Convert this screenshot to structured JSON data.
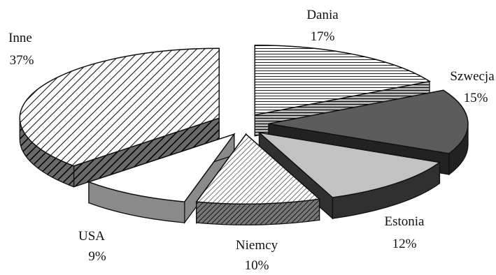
{
  "chart_data": {
    "type": "pie",
    "title": "",
    "categories": [
      "Dania",
      "Szwecja",
      "Estonia",
      "Niemcy",
      "USA",
      "Inne"
    ],
    "values": [
      17,
      15,
      12,
      10,
      9,
      37
    ],
    "value_labels": [
      "17%",
      "15%",
      "12%",
      "10%",
      "9%",
      "37%"
    ],
    "unit": "%",
    "exploded": true,
    "three_d": true,
    "legend": "none (labels beside slices)",
    "fills": [
      {
        "pattern": "horizontal-lines",
        "color": "#1a1a1a"
      },
      {
        "pattern": "solid",
        "color": "#555555"
      },
      {
        "pattern": "solid",
        "color": "#bdbdbd"
      },
      {
        "pattern": "diagonal-lines",
        "color": "#1a1a1a"
      },
      {
        "pattern": "solid",
        "color": "#ffffff"
      },
      {
        "pattern": "diagonal-lines",
        "color": "#1a1a1a"
      }
    ]
  }
}
